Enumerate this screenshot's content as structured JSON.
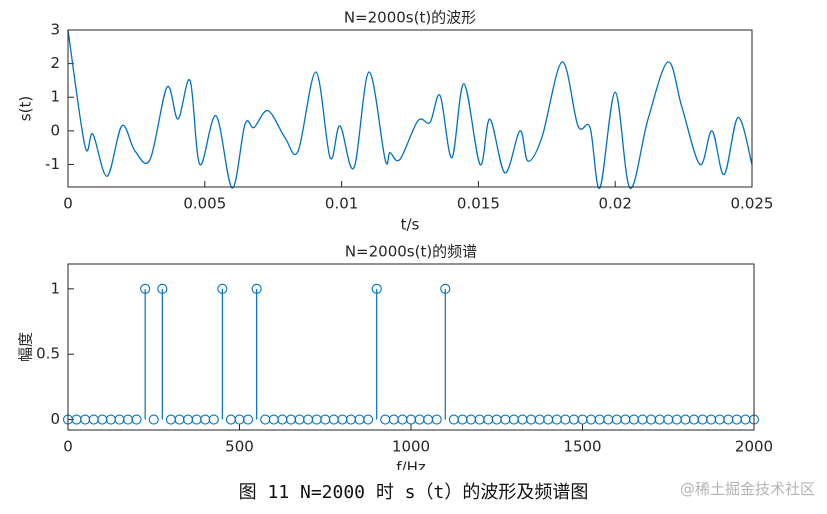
{
  "chart_data": [
    {
      "type": "line",
      "title": "N=2000s(t)的波形",
      "x_label": "t/s",
      "y_label": "s(t)",
      "color": "#0072bd",
      "x": [
        0,
        0.00062,
        0.00091,
        0.00143,
        0.00197,
        0.00245,
        0.003,
        0.00362,
        0.00402,
        0.00446,
        0.00482,
        0.00541,
        0.006,
        0.00647,
        0.0068,
        0.00731,
        0.00793,
        0.00841,
        0.00906,
        0.00958,
        0.00994,
        0.01045,
        0.011,
        0.01159,
        0.01177,
        0.01213,
        0.01279,
        0.01323,
        0.0136,
        0.01403,
        0.01447,
        0.01506,
        0.01542,
        0.01597,
        0.01652,
        0.01681,
        0.01732,
        0.01806,
        0.01864,
        0.01908,
        0.01944,
        0.02,
        0.02054,
        0.0212,
        0.02193,
        0.02244,
        0.0231,
        0.02354,
        0.02398,
        0.02449,
        0.025
      ],
      "values": [
        3,
        -0.45,
        -0.1,
        -1.35,
        0.15,
        -0.6,
        -0.85,
        1.3,
        0.35,
        1.5,
        -1.0,
        0.45,
        -1.7,
        0.2,
        0.1,
        0.6,
        -0.2,
        -0.6,
        1.75,
        -0.8,
        0.15,
        -1.1,
        1.75,
        -0.85,
        -0.65,
        -0.85,
        0.3,
        0.25,
        1.05,
        -0.8,
        1.4,
        -1.0,
        0.35,
        -1.25,
        0.0,
        -0.9,
        -0.2,
        2.05,
        0.15,
        0.1,
        -1.7,
        1.15,
        -1.7,
        0.35,
        2.05,
        0.7,
        -1.0,
        0.0,
        -1.3,
        0.4,
        -1.0
      ],
      "xlim": [
        0,
        0.025
      ],
      "xticks": [
        0,
        0.005,
        0.01,
        0.015,
        0.02,
        0.025
      ],
      "ylim": [
        -1.67,
        3
      ],
      "yticks": [
        -1,
        0,
        1,
        2,
        3
      ],
      "grid": false
    },
    {
      "type": "stem",
      "title": "N=2000s(t)的频谱",
      "x_label": "f/Hz",
      "y_label": "幅度",
      "color": "#0072bd",
      "x": [
        0,
        25,
        50,
        75,
        100,
        125,
        150,
        175,
        200,
        225,
        250,
        275,
        300,
        325,
        350,
        375,
        400,
        425,
        450,
        475,
        500,
        525,
        550,
        575,
        600,
        625,
        650,
        675,
        700,
        725,
        750,
        775,
        800,
        825,
        850,
        875,
        900,
        925,
        950,
        975,
        1000,
        1025,
        1050,
        1075,
        1100,
        1125,
        1150,
        1175,
        1200,
        1225,
        1250,
        1275,
        1300,
        1325,
        1350,
        1375,
        1400,
        1425,
        1450,
        1475,
        1500,
        1525,
        1550,
        1575,
        1600,
        1625,
        1650,
        1675,
        1700,
        1725,
        1750,
        1775,
        1800,
        1825,
        1850,
        1875,
        1900,
        1925,
        1950,
        1975,
        2000
      ],
      "values": [
        0,
        0,
        0,
        0,
        0,
        0,
        0,
        0,
        0,
        1,
        0,
        1,
        0,
        0,
        0,
        0,
        0,
        0,
        1,
        0,
        0,
        0,
        1,
        0,
        0,
        0,
        0,
        0,
        0,
        0,
        0,
        0,
        0,
        0,
        0,
        0,
        1,
        0,
        0,
        0,
        0,
        0,
        0,
        0,
        1,
        0,
        0,
        0,
        0,
        0,
        0,
        0,
        0,
        0,
        0,
        0,
        0,
        0,
        0,
        0,
        0,
        0,
        0,
        0,
        0,
        0,
        0,
        0,
        0,
        0,
        0,
        0,
        0,
        0,
        0,
        0,
        0,
        0,
        0,
        0,
        0
      ],
      "xlim": [
        0,
        2000
      ],
      "xticks": [
        0,
        500,
        1000,
        1500,
        2000
      ],
      "ylim": [
        -0.08,
        1.19
      ],
      "yticks": [
        0,
        0.5,
        1
      ],
      "grid": false
    }
  ],
  "caption": "图 11 N=2000 时 s（t）的波形及频谱图",
  "watermark": "@稀土掘金技术社区"
}
